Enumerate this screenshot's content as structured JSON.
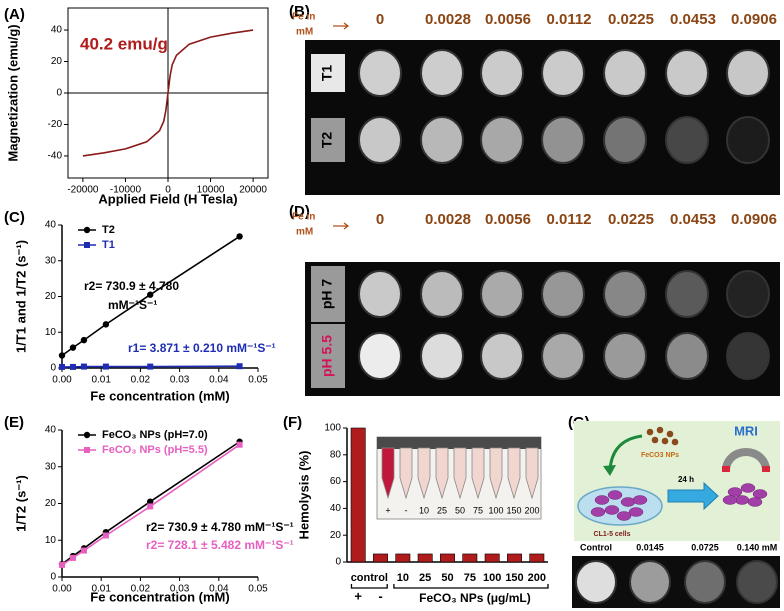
{
  "chart_data": [
    {
      "type": "line",
      "panel_label": "(A)",
      "xlabel": "Applied Field (H Tesla)",
      "ylabel": "Magnetization (emu/g)",
      "x": [
        -20000,
        -15000,
        -10000,
        -5000,
        -2000,
        -1000,
        -500,
        0,
        500,
        1000,
        2000,
        5000,
        10000,
        15000,
        20000
      ],
      "series": [
        {
          "color": "#8b1a1a",
          "values": [
            -40,
            -38,
            -35.5,
            -31,
            -24,
            -18,
            -11,
            0,
            11,
            18,
            24,
            31,
            35.5,
            38,
            40
          ]
        }
      ],
      "xlim": [
        -23500,
        23500
      ],
      "xticks": [
        -20000,
        -10000,
        0,
        10000,
        20000
      ],
      "ylim": [
        -54,
        54
      ],
      "yticks": [
        -40,
        -20,
        0,
        20,
        40
      ],
      "frame": true,
      "zero_lines": true,
      "annotations": [
        {
          "text": "40.2 emu/g",
          "color": "#b01c1c"
        }
      ]
    },
    {
      "type": "line",
      "panel_label": "(C)",
      "xlabel": "Fe concentration (mM)",
      "ylabel": "1/T1 and 1/T2 (s⁻¹)",
      "x": [
        0,
        0.0028,
        0.0056,
        0.0112,
        0.0225,
        0.0453
      ],
      "series": [
        {
          "name": "T2",
          "color": "#000000",
          "marker": "circle",
          "values": [
            3.5,
            5.7,
            7.8,
            12.2,
            20.5,
            36.8
          ]
        },
        {
          "name": "T1",
          "color": "#1f2db3",
          "marker": "square",
          "values": [
            0.3,
            0.3,
            0.4,
            0.4,
            0.4,
            0.5
          ]
        }
      ],
      "xlim": [
        0,
        0.05
      ],
      "xticks": [
        {
          "value": 0,
          "label": "0.00"
        },
        {
          "value": 0.01,
          "label": "0.01"
        },
        {
          "value": 0.02,
          "label": "0.02"
        },
        {
          "value": 0.03,
          "label": "0.03"
        },
        {
          "value": 0.04,
          "label": "0.04"
        },
        {
          "value": 0.05,
          "label": "0.05"
        }
      ],
      "ylim": [
        0,
        40
      ],
      "yticks": [
        0,
        10,
        20,
        30,
        40
      ],
      "legend": "upper left",
      "annotations": [
        {
          "text": "r2= 730.9 ± 4.780",
          "color": "#000000"
        },
        {
          "text": "mM⁻¹S⁻¹",
          "color": "#000000"
        },
        {
          "text": "r1= 3.871 ± 0.210 mM⁻¹S⁻¹",
          "color": "#1f2db3"
        }
      ]
    },
    {
      "type": "line",
      "panel_label": "(E)",
      "xlabel": "Fe concentration (mM)",
      "ylabel": "1/T2 (s⁻¹)",
      "x": [
        0,
        0.0028,
        0.0056,
        0.0112,
        0.0225,
        0.0453
      ],
      "series": [
        {
          "name": "FeCO₃ NPs (pH=7.0)",
          "color": "#000000",
          "marker": "circle",
          "values": [
            3.5,
            5.7,
            7.8,
            12.2,
            20.5,
            36.8
          ]
        },
        {
          "name": "FeCO₃ NPs (pH=5.5)",
          "color": "#e75fbf",
          "marker": "square",
          "values": [
            3.3,
            5.2,
            7.2,
            11.3,
            19.2,
            36.0
          ]
        }
      ],
      "xlim": [
        0,
        0.05
      ],
      "xticks": [
        {
          "value": 0,
          "label": "0.00"
        },
        {
          "value": 0.01,
          "label": "0.01"
        },
        {
          "value": 0.02,
          "label": "0.02"
        },
        {
          "value": 0.03,
          "label": "0.03"
        },
        {
          "value": 0.04,
          "label": "0.04"
        },
        {
          "value": 0.05,
          "label": "0.05"
        }
      ],
      "ylim": [
        0,
        40
      ],
      "yticks": [
        0,
        10,
        20,
        30,
        40
      ],
      "legend": "upper left",
      "annotations": [
        {
          "text": "r2= 730.9 ± 4.780 mM⁻¹S⁻¹",
          "color": "#000000"
        },
        {
          "text": "r2= 728.1 ± 5.482 mM⁻¹S⁻¹",
          "color": "#e75fbf"
        }
      ]
    },
    {
      "type": "bar",
      "panel_label": "(F)",
      "ylabel": "Hemolysis (%)",
      "categories": [
        "+",
        "-",
        "10",
        "25",
        "50",
        "75",
        "100",
        "150",
        "200"
      ],
      "values": [
        100,
        6,
        6,
        6,
        6,
        6,
        6,
        6,
        6
      ],
      "color": "#b01c1c",
      "ylim": [
        0,
        100
      ],
      "yticks": [
        0,
        20,
        40,
        60,
        80,
        100
      ],
      "group_labels": [
        "control",
        "FeCO₃ NPs (μg/mL)"
      ],
      "inset_labels": [
        "+",
        "-",
        "10",
        "25",
        "50",
        "75",
        "100",
        "150",
        "200"
      ]
    }
  ],
  "panel_b": {
    "label": "(B)",
    "fe_label": [
      "Fe in",
      "mM"
    ],
    "concentrations": [
      "0",
      "0.0028",
      "0.0056",
      "0.0112",
      "0.0225",
      "0.0453",
      "0.0906"
    ],
    "rows": [
      "T1",
      "T2"
    ]
  },
  "panel_d": {
    "label": "(D)",
    "fe_label": [
      "Fe in",
      "mM"
    ],
    "concentrations": [
      "0",
      "0.0028",
      "0.0056",
      "0.0112",
      "0.0225",
      "0.0453",
      "0.0906"
    ],
    "rows": [
      "pH 7",
      "pH 5.5"
    ]
  },
  "panel_g": {
    "label": "(G)",
    "mri": "MRI",
    "nps": "FeCO3 NPs",
    "time": "24 h",
    "cells": "CL1-5 cells",
    "concentrations": [
      "Control",
      "0.0145",
      "0.0725",
      "0.140 mM"
    ]
  }
}
